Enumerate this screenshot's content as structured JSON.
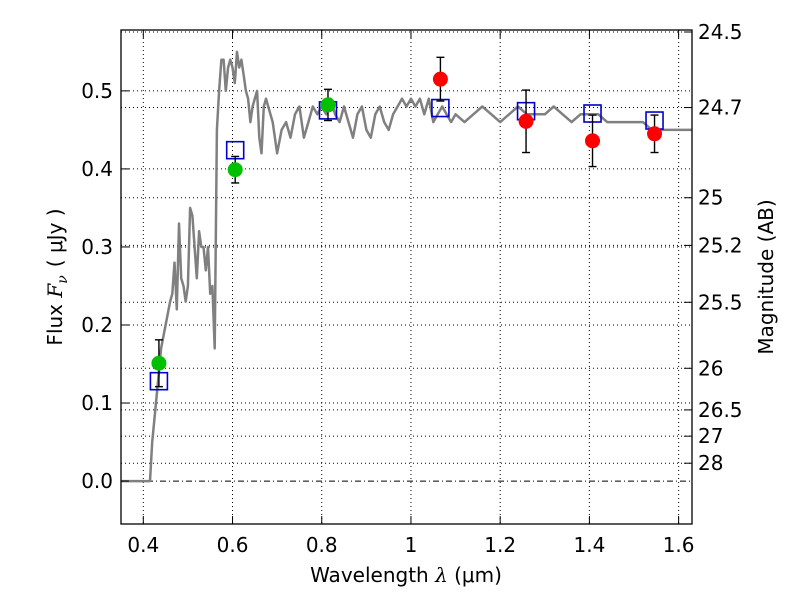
{
  "chart_data": {
    "type": "scatter",
    "xlabel": {
      "prefix": "Wavelength  ",
      "symbol": "λ",
      "unit": " (μm)"
    },
    "ylabel": {
      "prefix": "Flux  ",
      "symbol": "F",
      "subscript": "ν",
      "unit": "( μJy )"
    },
    "y2label": "Magnitude (AB)",
    "xlim": [
      0.35,
      1.63
    ],
    "ylim": [
      -0.055,
      0.578
    ],
    "xticks": [
      0.4,
      0.6,
      0.8,
      1.0,
      1.2,
      1.4,
      1.6
    ],
    "xtick_labels": [
      "0.4",
      "0.6",
      "0.8",
      "1",
      "1.2",
      "1.4",
      "1.6"
    ],
    "yticks": [
      0.0,
      0.1,
      0.2,
      0.3,
      0.4,
      0.5
    ],
    "ytick_labels": [
      "0.0",
      "0.1",
      "0.2",
      "0.3",
      "0.4",
      "0.5"
    ],
    "y2_magnitudes": [
      "24.5",
      "24.7",
      "25",
      "25.2",
      "25.5",
      "26",
      "26.5",
      "27",
      "28"
    ],
    "grid": true,
    "template_spectrum": {
      "color": "#808080",
      "x": [
        0.35,
        0.415,
        0.42,
        0.43,
        0.44,
        0.45,
        0.46,
        0.465,
        0.47,
        0.475,
        0.48,
        0.485,
        0.49,
        0.495,
        0.5,
        0.505,
        0.51,
        0.515,
        0.52,
        0.525,
        0.53,
        0.535,
        0.54,
        0.545,
        0.55,
        0.555,
        0.56,
        0.565,
        0.57,
        0.575,
        0.58,
        0.585,
        0.59,
        0.595,
        0.6,
        0.605,
        0.61,
        0.615,
        0.62,
        0.625,
        0.63,
        0.635,
        0.64,
        0.645,
        0.65,
        0.655,
        0.66,
        0.665,
        0.67,
        0.675,
        0.68,
        0.69,
        0.7,
        0.71,
        0.72,
        0.73,
        0.74,
        0.75,
        0.76,
        0.77,
        0.78,
        0.79,
        0.8,
        0.81,
        0.82,
        0.83,
        0.84,
        0.85,
        0.86,
        0.87,
        0.88,
        0.89,
        0.9,
        0.91,
        0.92,
        0.93,
        0.94,
        0.95,
        0.96,
        0.97,
        0.98,
        0.99,
        1.0,
        1.01,
        1.02,
        1.03,
        1.04,
        1.05,
        1.06,
        1.07,
        1.08,
        1.09,
        1.1,
        1.12,
        1.14,
        1.16,
        1.18,
        1.2,
        1.22,
        1.24,
        1.26,
        1.28,
        1.3,
        1.32,
        1.34,
        1.36,
        1.38,
        1.4,
        1.42,
        1.44,
        1.46,
        1.48,
        1.5,
        1.52,
        1.54,
        1.56,
        1.58,
        1.6,
        1.63
      ],
      "y": [
        0.0,
        0.0,
        0.05,
        0.11,
        0.17,
        0.2,
        0.23,
        0.24,
        0.28,
        0.22,
        0.33,
        0.26,
        0.25,
        0.23,
        0.25,
        0.35,
        0.34,
        0.3,
        0.26,
        0.32,
        0.3,
        0.3,
        0.27,
        0.3,
        0.24,
        0.25,
        0.17,
        0.45,
        0.5,
        0.54,
        0.54,
        0.5,
        0.53,
        0.54,
        0.53,
        0.51,
        0.55,
        0.53,
        0.54,
        0.52,
        0.5,
        0.49,
        0.46,
        0.48,
        0.49,
        0.5,
        0.44,
        0.42,
        0.48,
        0.49,
        0.48,
        0.46,
        0.42,
        0.45,
        0.46,
        0.44,
        0.47,
        0.48,
        0.44,
        0.46,
        0.48,
        0.47,
        0.48,
        0.47,
        0.49,
        0.47,
        0.46,
        0.48,
        0.46,
        0.44,
        0.47,
        0.48,
        0.45,
        0.44,
        0.47,
        0.48,
        0.46,
        0.45,
        0.47,
        0.48,
        0.49,
        0.48,
        0.49,
        0.48,
        0.49,
        0.47,
        0.49,
        0.46,
        0.47,
        0.48,
        0.47,
        0.46,
        0.47,
        0.46,
        0.47,
        0.48,
        0.47,
        0.46,
        0.47,
        0.48,
        0.47,
        0.47,
        0.47,
        0.48,
        0.47,
        0.46,
        0.47,
        0.47,
        0.47,
        0.46,
        0.46,
        0.46,
        0.46,
        0.46,
        0.45,
        0.45,
        0.45,
        0.45,
        0.45
      ]
    },
    "series": [
      {
        "color": "#00c000",
        "shape": "circle",
        "points": [
          {
            "x": 0.435,
            "y": 0.151,
            "err": 0.03
          },
          {
            "x": 0.606,
            "y": 0.399,
            "err": 0.017
          },
          {
            "x": 0.814,
            "y": 0.482,
            "err": 0.02
          }
        ]
      },
      {
        "color": "#ff0000",
        "shape": "circle",
        "points": [
          {
            "x": 1.066,
            "y": 0.515,
            "err": 0.028
          },
          {
            "x": 1.258,
            "y": 0.461,
            "err": 0.04
          },
          {
            "x": 1.407,
            "y": 0.436,
            "err": 0.033
          },
          {
            "x": 1.546,
            "y": 0.445,
            "err": 0.024
          }
        ]
      },
      {
        "color": "#0000cc",
        "shape": "open-square",
        "points": [
          {
            "x": 0.435,
            "y": 0.128
          },
          {
            "x": 0.606,
            "y": 0.424
          },
          {
            "x": 0.814,
            "y": 0.475
          },
          {
            "x": 1.066,
            "y": 0.478
          },
          {
            "x": 1.258,
            "y": 0.474
          },
          {
            "x": 1.407,
            "y": 0.471
          },
          {
            "x": 1.546,
            "y": 0.462
          }
        ]
      }
    ]
  }
}
